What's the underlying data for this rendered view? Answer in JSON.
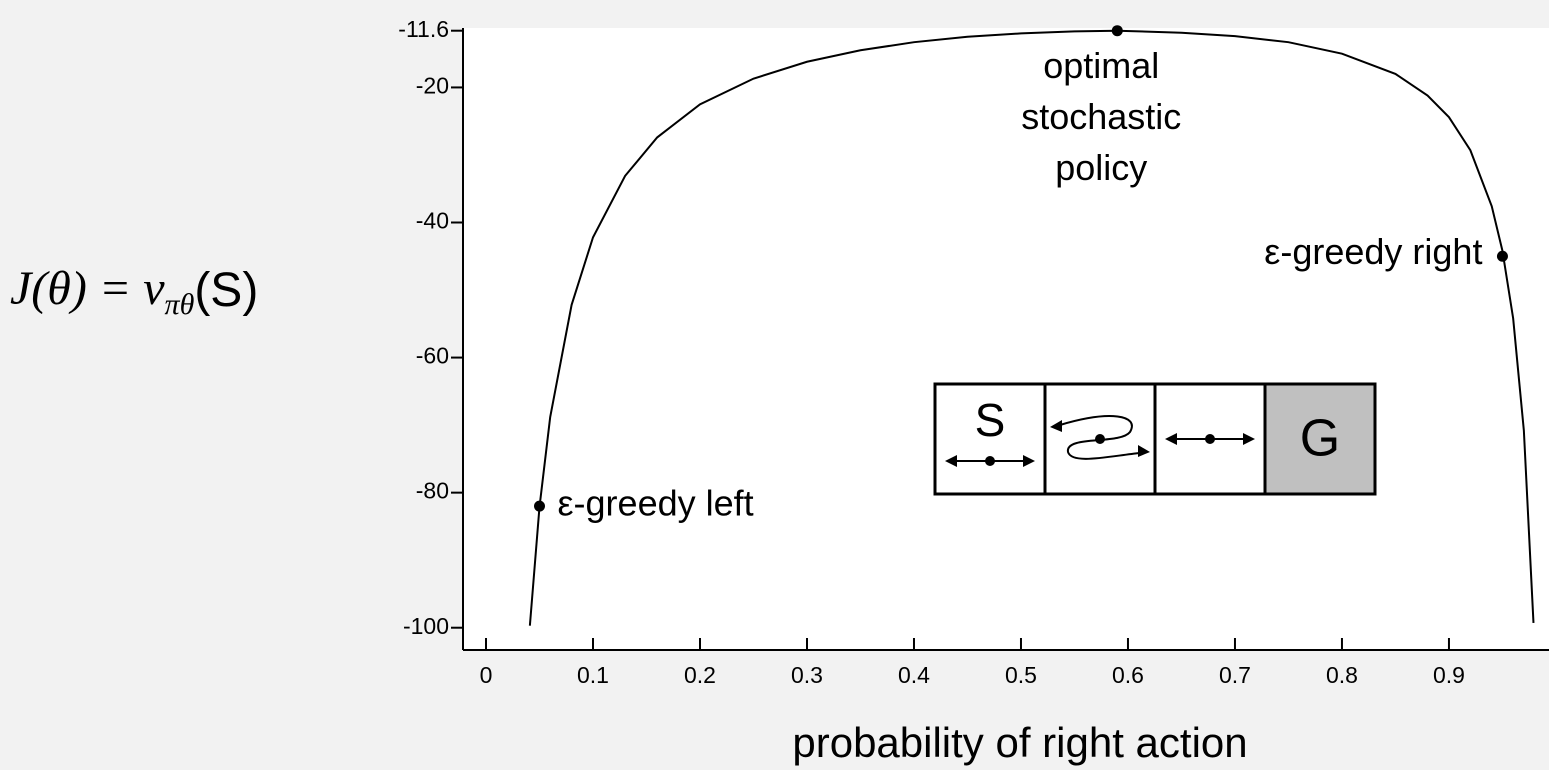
{
  "chart_data": {
    "type": "line",
    "xlabel": "probability of right action",
    "ylabel": {
      "main": "J(θ) = v",
      "sub": "πθ",
      "tail": "(S)"
    },
    "x": [
      0.041,
      0.05,
      0.06,
      0.08,
      0.1,
      0.13,
      0.16,
      0.2,
      0.25,
      0.3,
      0.35,
      0.4,
      0.45,
      0.5,
      0.55,
      0.59,
      0.65,
      0.7,
      0.75,
      0.8,
      0.85,
      0.88,
      0.9,
      0.92,
      0.94,
      0.95,
      0.96,
      0.97,
      0.979
    ],
    "values": [
      -99.7,
      -82.1,
      -68.8,
      -52.2,
      -42.2,
      -33.1,
      -27.4,
      -22.5,
      -18.7,
      -16.2,
      -14.5,
      -13.3,
      -12.5,
      -12.0,
      -11.7,
      -11.6,
      -11.9,
      -12.4,
      -13.3,
      -15.0,
      -18.0,
      -21.2,
      -24.4,
      -29.3,
      -37.6,
      -44.2,
      -54.2,
      -70.8,
      -99.3
    ],
    "color": "#000000",
    "xlim": [
      -0.0215,
      0.9935
    ],
    "ylim": [
      -103.3,
      -11.2
    ],
    "xticks": [
      0,
      0.1,
      0.2,
      0.3,
      0.4,
      0.5,
      0.6,
      0.7,
      0.8,
      0.9
    ],
    "yticks": [
      -11.6,
      -20,
      -40,
      -60,
      -80,
      -100
    ],
    "annotations": [
      {
        "x": 0.59,
        "y": -11.6,
        "text": [
          "optimal",
          "stochastic",
          "policy"
        ]
      },
      {
        "x": 0.05,
        "y": -82,
        "text": [
          "ε-greedy left"
        ]
      },
      {
        "x": 0.95,
        "y": -45,
        "text": [
          "ε-greedy right"
        ]
      }
    ],
    "inset": {
      "start": "S",
      "goal": "G"
    }
  }
}
